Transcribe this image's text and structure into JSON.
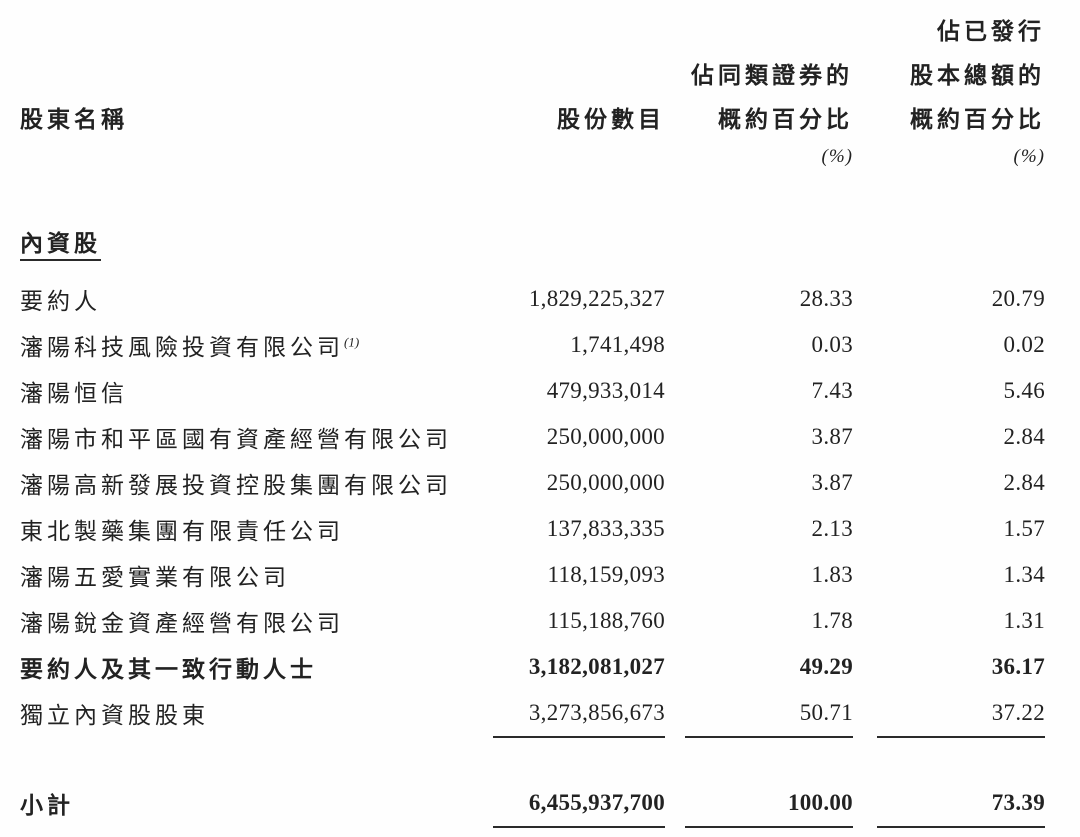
{
  "header": {
    "col1": "股東名稱",
    "col2": "股份數目",
    "col3_l1": "佔同類證券的",
    "col3_l2": "概約百分比",
    "col3_unit": "(%)",
    "col4_l1": "佔已發行",
    "col4_l2": "股本總額的",
    "col4_l3": "概約百分比",
    "col4_unit": "(%)"
  },
  "section_title": "內資股",
  "rows": [
    {
      "name": "要約人",
      "shares": "1,829,225,327",
      "class_pct": "28.33",
      "total_pct": "20.79"
    },
    {
      "name": "瀋陽科技風險投資有限公司",
      "note": "(1)",
      "shares": "1,741,498",
      "class_pct": "0.03",
      "total_pct": "0.02"
    },
    {
      "name": "瀋陽恒信",
      "shares": "479,933,014",
      "class_pct": "7.43",
      "total_pct": "5.46"
    },
    {
      "name": "瀋陽市和平區國有資產經營有限公司",
      "shares": "250,000,000",
      "class_pct": "3.87",
      "total_pct": "2.84"
    },
    {
      "name": "瀋陽高新發展投資控股集團有限公司",
      "shares": "250,000,000",
      "class_pct": "3.87",
      "total_pct": "2.84"
    },
    {
      "name": "東北製藥集團有限責任公司",
      "shares": "137,833,335",
      "class_pct": "2.13",
      "total_pct": "1.57"
    },
    {
      "name": "瀋陽五愛實業有限公司",
      "shares": "118,159,093",
      "class_pct": "1.83",
      "total_pct": "1.34"
    },
    {
      "name": "瀋陽銳金資產經營有限公司",
      "shares": "115,188,760",
      "class_pct": "1.78",
      "total_pct": "1.31"
    },
    {
      "name": "要約人及其一致行動人士",
      "shares": "3,182,081,027",
      "class_pct": "49.29",
      "total_pct": "36.17"
    },
    {
      "name": "獨立內資股股東",
      "shares": "3,273,856,673",
      "class_pct": "50.71",
      "total_pct": "37.22"
    }
  ],
  "subtotal": {
    "label": "小計",
    "shares": "6,455,937,700",
    "class_pct": "100.00",
    "total_pct": "73.39"
  }
}
